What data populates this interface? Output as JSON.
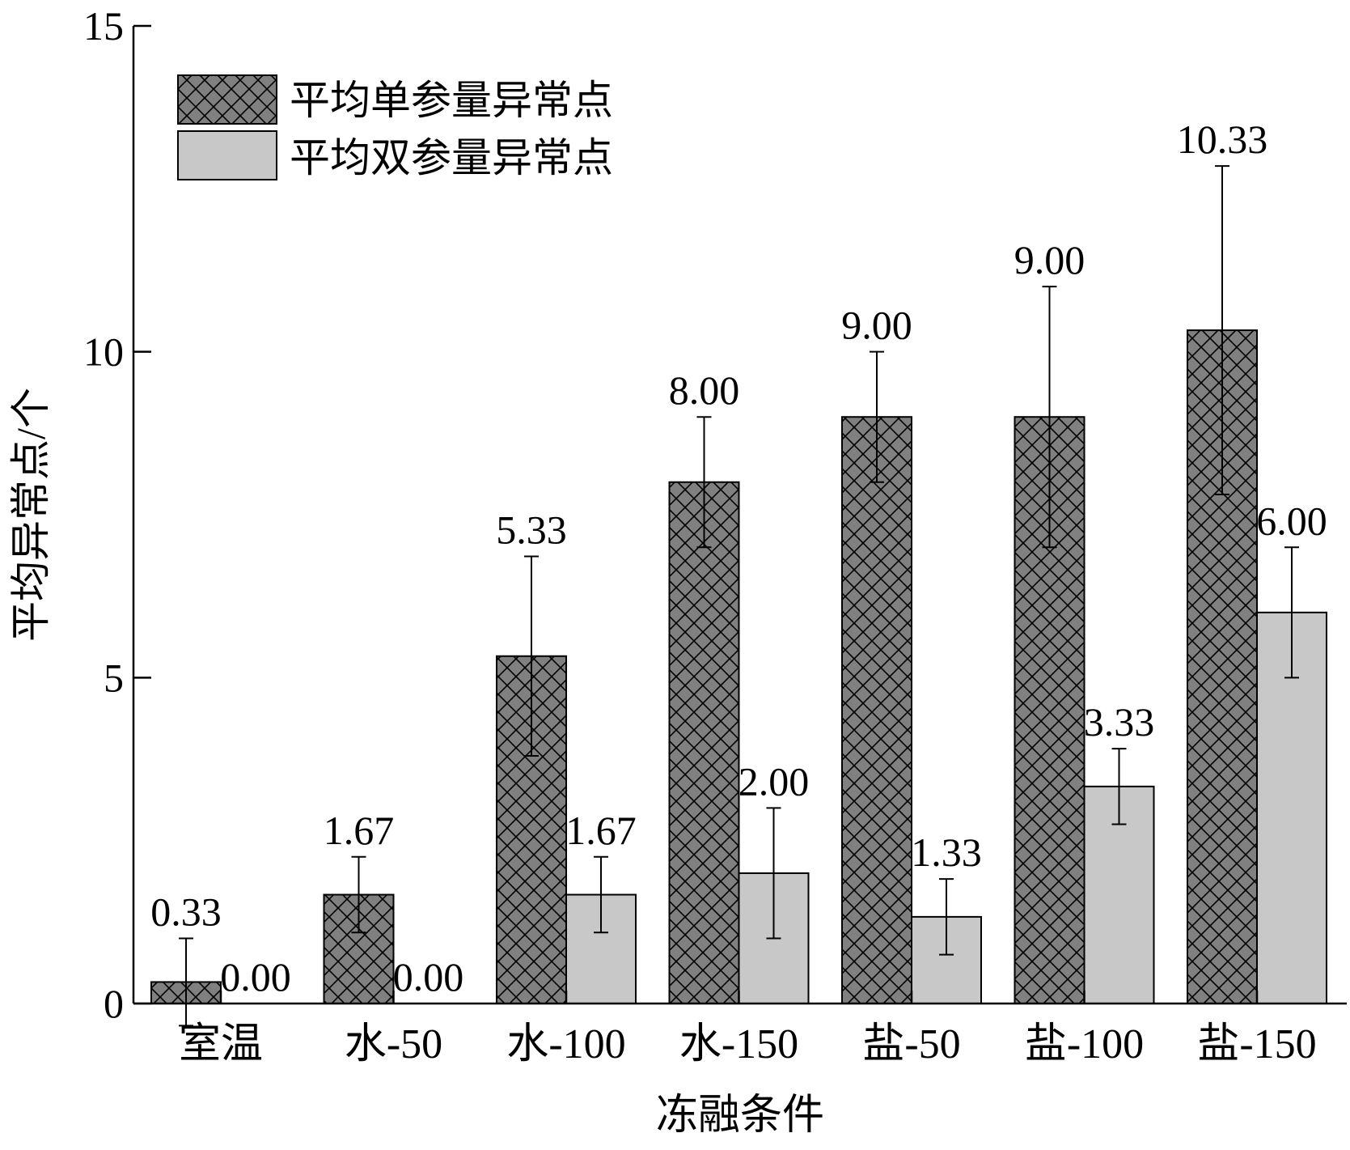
{
  "colors": {
    "single_fill": "#808080",
    "double_fill": "#c8c8c8",
    "stroke": "#000000",
    "background": "#ffffff"
  },
  "chart_data": {
    "type": "bar",
    "xlabel": "冻融条件",
    "ylabel": "平均异常点/个",
    "categories": [
      "室温",
      "水-50",
      "水-100",
      "水-150",
      "盐-50",
      "盐-100",
      "盐-150"
    ],
    "ylim": [
      0,
      15
    ],
    "yticks": [
      0,
      5,
      10,
      15
    ],
    "ytick_labels": [
      "0",
      "5",
      "10",
      "15"
    ],
    "legend_position": "top-left",
    "series": [
      {
        "name": "平均单参量异常点",
        "pattern": "crosshatch",
        "values": [
          0.33,
          1.67,
          5.33,
          8.0,
          9.0,
          9.0,
          10.33
        ],
        "labels": [
          "0.33",
          "1.67",
          "5.33",
          "8.00",
          "9.00",
          "9.00",
          "10.33"
        ],
        "error": [
          0.67,
          0.58,
          1.53,
          1.0,
          1.0,
          2.0,
          2.52
        ]
      },
      {
        "name": "平均双参量异常点",
        "pattern": "solid",
        "values": [
          0.0,
          0.0,
          1.67,
          2.0,
          1.33,
          3.33,
          6.0
        ],
        "labels": [
          "0.00",
          "0.00",
          "1.67",
          "2.00",
          "1.33",
          "3.33",
          "6.00"
        ],
        "error": [
          0,
          0,
          0.58,
          1.0,
          0.58,
          0.58,
          1.0
        ]
      }
    ]
  }
}
